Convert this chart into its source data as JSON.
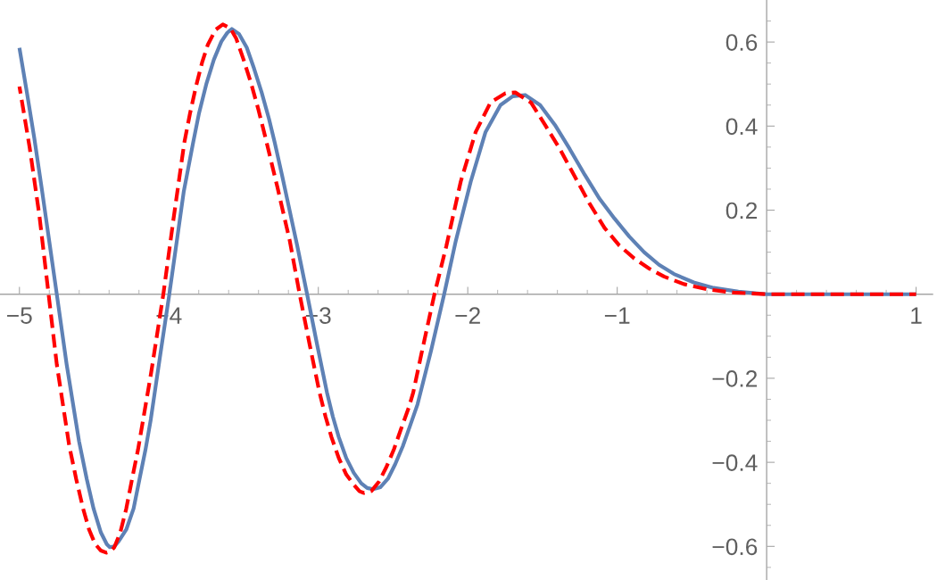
{
  "chart_data": {
    "type": "line",
    "xlim": [
      -5.13,
      1.11
    ],
    "ylim": [
      -0.68,
      0.7
    ],
    "xticks": [
      {
        "value": -5,
        "label": "−5"
      },
      {
        "value": -4,
        "label": "−4"
      },
      {
        "value": -3,
        "label": "−3"
      },
      {
        "value": -2,
        "label": "−2"
      },
      {
        "value": -1,
        "label": "−1"
      },
      1,
      {
        "value": -4.8,
        "label": null
      },
      {
        "value": -4.6,
        "label": null
      },
      {
        "value": -4.4,
        "label": null
      },
      {
        "value": -4.2,
        "label": null
      },
      {
        "value": -3.8,
        "label": null
      },
      {
        "value": -3.6,
        "label": null
      },
      {
        "value": -3.4,
        "label": null
      },
      {
        "value": -3.2,
        "label": null
      },
      {
        "value": -2.8,
        "label": null
      },
      {
        "value": -2.6,
        "label": null
      },
      {
        "value": -2.4,
        "label": null
      },
      {
        "value": -2.2,
        "label": null
      },
      {
        "value": -1.8,
        "label": null
      },
      {
        "value": -1.6,
        "label": null
      },
      {
        "value": -1.4,
        "label": null
      },
      {
        "value": -1.2,
        "label": null
      },
      {
        "value": -0.8,
        "label": null
      },
      {
        "value": -0.6,
        "label": null
      },
      {
        "value": -0.4,
        "label": null
      },
      {
        "value": -0.2,
        "label": null
      },
      {
        "value": 0.2,
        "label": null
      },
      {
        "value": 0.4,
        "label": null
      },
      {
        "value": 0.6,
        "label": null
      },
      {
        "value": 0.8,
        "label": null
      }
    ],
    "yticks": [
      {
        "value": -0.6,
        "label": "−0.6"
      },
      {
        "value": -0.4,
        "label": "−0.4"
      },
      {
        "value": -0.2,
        "label": "−0.2"
      },
      0.2,
      0.4,
      0.6,
      {
        "value": -0.65,
        "label": null
      },
      {
        "value": -0.55,
        "label": null
      },
      {
        "value": -0.5,
        "label": null
      },
      {
        "value": -0.45,
        "label": null
      },
      {
        "value": -0.35,
        "label": null
      },
      {
        "value": -0.3,
        "label": null
      },
      {
        "value": -0.25,
        "label": null
      },
      {
        "value": -0.15,
        "label": null
      },
      {
        "value": -0.1,
        "label": null
      },
      {
        "value": -0.05,
        "label": null
      },
      {
        "value": 0.05,
        "label": null
      },
      {
        "value": 0.1,
        "label": null
      },
      {
        "value": 0.15,
        "label": null
      },
      {
        "value": 0.25,
        "label": null
      },
      {
        "value": 0.3,
        "label": null
      },
      {
        "value": 0.35,
        "label": null
      },
      {
        "value": 0.45,
        "label": null
      },
      {
        "value": 0.5,
        "label": null
      },
      {
        "value": 0.55,
        "label": null
      },
      {
        "value": 0.65,
        "label": null
      }
    ],
    "series": [
      {
        "color": "#5e81b5",
        "line_style": "solid",
        "x": [
          -5.0,
          -4.95,
          -4.9,
          -4.85,
          -4.8,
          -4.75,
          -4.684,
          -4.601,
          -4.55,
          -4.504,
          -4.455,
          -4.415,
          -4.395,
          -4.365,
          -4.336,
          -4.285,
          -4.236,
          -4.196,
          -4.156,
          -4.121,
          -4.06,
          -3.997,
          -3.9,
          -3.838,
          -3.798,
          -3.748,
          -3.699,
          -3.649,
          -3.609,
          -3.579,
          -3.53,
          -3.479,
          -3.43,
          -3.38,
          -3.33,
          -3.291,
          -3.241,
          -3.141,
          -3.075,
          -3.008,
          -2.942,
          -2.903,
          -2.863,
          -2.813,
          -2.763,
          -2.713,
          -2.673,
          -2.634,
          -2.584,
          -2.534,
          -2.485,
          -2.435,
          -2.385,
          -2.336,
          -2.246,
          -2.158,
          -2.08,
          -1.98,
          -1.881,
          -1.781,
          -1.699,
          -1.616,
          -1.516,
          -1.417,
          -1.317,
          -1.217,
          -1.118,
          -1.018,
          -0.919,
          -0.82,
          -0.72,
          -0.62,
          -0.488,
          -0.355,
          -0.189,
          0,
          1
        ],
        "values": [
          0.586,
          0.48,
          0.37,
          0.25,
          0.125,
          0.0,
          -0.167,
          -0.35,
          -0.439,
          -0.51,
          -0.567,
          -0.595,
          -0.602,
          -0.6,
          -0.588,
          -0.56,
          -0.51,
          -0.439,
          -0.369,
          -0.298,
          -0.15,
          0.0,
          0.245,
          0.36,
          0.431,
          0.502,
          0.558,
          0.601,
          0.622,
          0.631,
          0.619,
          0.587,
          0.537,
          0.481,
          0.417,
          0.36,
          0.28,
          0.115,
          0.0,
          -0.12,
          -0.234,
          -0.291,
          -0.34,
          -0.39,
          -0.425,
          -0.45,
          -0.461,
          -0.464,
          -0.459,
          -0.439,
          -0.404,
          -0.362,
          -0.312,
          -0.262,
          -0.135,
          0.0,
          0.127,
          0.268,
          0.386,
          0.45,
          0.471,
          0.474,
          0.45,
          0.403,
          0.345,
          0.284,
          0.227,
          0.18,
          0.137,
          0.1,
          0.07,
          0.048,
          0.028,
          0.015,
          0.006,
          0,
          0
        ]
      },
      {
        "color": "#ff0000",
        "line_style": "dashed",
        "x": [
          -5.0,
          -4.932,
          -4.866,
          -4.805,
          -4.75,
          -4.667,
          -4.62,
          -4.574,
          -4.534,
          -4.494,
          -4.455,
          -4.419,
          -4.39,
          -4.365,
          -4.325,
          -4.285,
          -4.246,
          -4.206,
          -4.172,
          -4.12,
          -4.037,
          -3.971,
          -3.897,
          -3.858,
          -3.818,
          -3.778,
          -3.739,
          -3.688,
          -3.639,
          -3.589,
          -3.549,
          -3.5,
          -3.45,
          -3.4,
          -3.35,
          -3.274,
          -3.191,
          -3.125,
          -3.058,
          -2.992,
          -2.952,
          -2.912,
          -2.863,
          -2.813,
          -2.763,
          -2.724,
          -2.694,
          -2.644,
          -2.594,
          -2.544,
          -2.494,
          -2.445,
          -2.395,
          -2.365,
          -2.312,
          -2.223,
          -2.143,
          -2.047,
          -1.947,
          -1.848,
          -1.748,
          -1.682,
          -1.577,
          -1.483,
          -1.383,
          -1.284,
          -1.184,
          -1.085,
          -0.986,
          -0.886,
          -0.786,
          -0.687,
          -0.554,
          -0.388,
          -0.222,
          0,
          1
        ],
        "values": [
          0.494,
          0.35,
          0.186,
          0.0,
          -0.167,
          -0.36,
          -0.44,
          -0.51,
          -0.56,
          -0.594,
          -0.61,
          -0.615,
          -0.612,
          -0.602,
          -0.567,
          -0.51,
          -0.439,
          -0.369,
          -0.298,
          -0.19,
          0.0,
          0.174,
          0.36,
          0.431,
          0.495,
          0.551,
          0.594,
          0.629,
          0.642,
          0.633,
          0.608,
          0.558,
          0.502,
          0.438,
          0.367,
          0.255,
          0.127,
          0.0,
          -0.12,
          -0.234,
          -0.291,
          -0.34,
          -0.39,
          -0.429,
          -0.453,
          -0.469,
          -0.473,
          -0.468,
          -0.446,
          -0.411,
          -0.369,
          -0.319,
          -0.27,
          -0.234,
          -0.145,
          0.0,
          0.115,
          0.268,
          0.386,
          0.456,
          0.478,
          0.48,
          0.456,
          0.403,
          0.345,
          0.28,
          0.215,
          0.158,
          0.116,
          0.085,
          0.061,
          0.042,
          0.024,
          0.011,
          0.004,
          0,
          0
        ]
      }
    ]
  }
}
